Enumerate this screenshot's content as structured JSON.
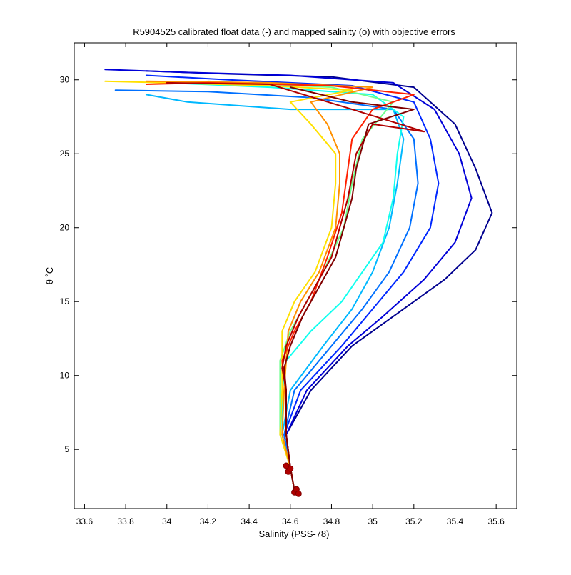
{
  "chart_data": {
    "type": "line",
    "title": "R5904525 calibrated float data (-) and mapped salinity (o) with objective errors",
    "xlabel": "Salinity (PSS-78)",
    "ylabel": "θ ˚C",
    "xlim": [
      33.55,
      35.7
    ],
    "ylim": [
      1,
      32.5
    ],
    "xticks": [
      33.6,
      33.8,
      34,
      34.2,
      34.4,
      34.6,
      34.8,
      35,
      35.2,
      35.4,
      35.6
    ],
    "xtick_labels": [
      "33.6",
      "33.8",
      "34",
      "34.2",
      "34.4",
      "34.6",
      "34.8",
      "35",
      "35.2",
      "35.4",
      "35.6"
    ],
    "yticks": [
      5,
      10,
      15,
      20,
      25,
      30
    ],
    "ytick_labels": [
      "5",
      "10",
      "15",
      "20",
      "25",
      "30"
    ],
    "grid": false,
    "colormap": "jet (profile number: early = dark blue, late = dark red)",
    "series": [
      {
        "color": "#00008f",
        "points": [
          [
            34.62,
            2.2
          ],
          [
            34.6,
            3.8
          ],
          [
            34.58,
            6
          ],
          [
            34.7,
            9
          ],
          [
            34.9,
            12
          ],
          [
            35.1,
            14
          ],
          [
            35.35,
            16.5
          ],
          [
            35.5,
            18.5
          ],
          [
            35.58,
            21
          ],
          [
            35.5,
            24
          ],
          [
            35.4,
            27
          ],
          [
            35.2,
            29.5
          ],
          [
            34.8,
            30.2
          ],
          [
            34.3,
            30.4
          ],
          [
            33.9,
            30.6
          ]
        ]
      },
      {
        "color": "#0000d8",
        "points": [
          [
            34.62,
            2.2
          ],
          [
            34.6,
            3.8
          ],
          [
            34.58,
            6
          ],
          [
            34.68,
            9
          ],
          [
            34.88,
            12
          ],
          [
            35.05,
            14
          ],
          [
            35.25,
            16.5
          ],
          [
            35.4,
            19
          ],
          [
            35.48,
            22
          ],
          [
            35.42,
            25
          ],
          [
            35.3,
            28
          ],
          [
            35.1,
            29.8
          ],
          [
            34.6,
            30.3
          ],
          [
            34.1,
            30.5
          ],
          [
            33.7,
            30.7
          ]
        ]
      },
      {
        "color": "#0028ff",
        "points": [
          [
            34.62,
            2.2
          ],
          [
            34.6,
            3.8
          ],
          [
            34.57,
            6
          ],
          [
            34.65,
            9
          ],
          [
            34.85,
            12
          ],
          [
            35.0,
            14.5
          ],
          [
            35.15,
            17
          ],
          [
            35.28,
            20
          ],
          [
            35.32,
            23
          ],
          [
            35.28,
            26
          ],
          [
            35.2,
            28.5
          ],
          [
            34.9,
            29.6
          ],
          [
            34.3,
            30.0
          ],
          [
            33.9,
            30.3
          ]
        ]
      },
      {
        "color": "#0070ff",
        "points": [
          [
            34.62,
            2.2
          ],
          [
            34.6,
            3.8
          ],
          [
            34.57,
            6
          ],
          [
            34.62,
            9
          ],
          [
            34.8,
            12
          ],
          [
            34.95,
            14.5
          ],
          [
            35.08,
            17
          ],
          [
            35.18,
            20
          ],
          [
            35.22,
            23
          ],
          [
            35.2,
            26
          ],
          [
            35.1,
            28
          ],
          [
            34.7,
            28.8
          ],
          [
            34.2,
            29.2
          ],
          [
            33.75,
            29.3
          ]
        ]
      },
      {
        "color": "#00b8ff",
        "points": [
          [
            34.62,
            2.2
          ],
          [
            34.6,
            3.8
          ],
          [
            34.56,
            6
          ],
          [
            34.6,
            9
          ],
          [
            34.76,
            12
          ],
          [
            34.9,
            14.5
          ],
          [
            35.0,
            17
          ],
          [
            35.08,
            20
          ],
          [
            35.12,
            23
          ],
          [
            35.15,
            26
          ],
          [
            35.1,
            28
          ],
          [
            34.6,
            28.0
          ],
          [
            34.1,
            28.5
          ],
          [
            33.9,
            29.0
          ]
        ]
      },
      {
        "color": "#10ffef",
        "points": [
          [
            34.62,
            2.2
          ],
          [
            34.6,
            3.8
          ],
          [
            34.56,
            6
          ],
          [
            34.56,
            9
          ],
          [
            34.58,
            11
          ],
          [
            34.7,
            13
          ],
          [
            34.85,
            15
          ],
          [
            34.95,
            17
          ],
          [
            35.05,
            19
          ],
          [
            35.1,
            22
          ],
          [
            35.12,
            25
          ],
          [
            35.15,
            27.5
          ],
          [
            35.0,
            29
          ],
          [
            34.5,
            29.5
          ],
          [
            34.0,
            29.8
          ]
        ]
      },
      {
        "color": "#6fff8f",
        "points": [
          [
            34.62,
            2.2
          ],
          [
            34.6,
            3.8
          ],
          [
            34.55,
            6
          ],
          [
            34.55,
            9
          ],
          [
            34.55,
            11
          ],
          [
            34.6,
            13
          ],
          [
            34.68,
            15
          ],
          [
            34.76,
            17
          ],
          [
            34.86,
            20
          ],
          [
            34.9,
            23
          ],
          [
            34.95,
            26
          ],
          [
            35.1,
            28.5
          ],
          [
            34.8,
            29.5
          ],
          [
            34.2,
            29.9
          ]
        ]
      },
      {
        "color": "#ffe000",
        "points": [
          [
            34.62,
            2.2
          ],
          [
            34.6,
            3.8
          ],
          [
            34.55,
            6
          ],
          [
            34.56,
            9
          ],
          [
            34.56,
            11
          ],
          [
            34.56,
            13
          ],
          [
            34.62,
            15
          ],
          [
            34.72,
            17
          ],
          [
            34.8,
            20
          ],
          [
            34.82,
            23
          ],
          [
            34.82,
            25
          ],
          [
            34.7,
            27
          ],
          [
            34.6,
            28.5
          ],
          [
            34.9,
            29.3
          ],
          [
            34.5,
            29.6
          ],
          [
            34.0,
            29.8
          ],
          [
            33.7,
            29.9
          ]
        ]
      },
      {
        "color": "#ff9000",
        "points": [
          [
            34.62,
            2.2
          ],
          [
            34.6,
            3.8
          ],
          [
            34.56,
            6
          ],
          [
            34.57,
            9
          ],
          [
            34.58,
            11
          ],
          [
            34.59,
            13
          ],
          [
            34.65,
            15
          ],
          [
            34.74,
            17
          ],
          [
            34.82,
            20
          ],
          [
            34.84,
            23
          ],
          [
            34.84,
            25
          ],
          [
            34.78,
            27
          ],
          [
            34.7,
            28.5
          ],
          [
            35.0,
            29.5
          ],
          [
            34.5,
            29.8
          ],
          [
            33.9,
            29.9
          ]
        ]
      },
      {
        "color": "#ff2000",
        "points": [
          [
            34.62,
            2.2
          ],
          [
            34.6,
            3.8
          ],
          [
            34.58,
            6
          ],
          [
            34.58,
            9
          ],
          [
            34.56,
            11
          ],
          [
            34.62,
            13
          ],
          [
            34.7,
            15
          ],
          [
            34.78,
            18
          ],
          [
            34.85,
            21
          ],
          [
            34.88,
            24
          ],
          [
            34.9,
            26
          ],
          [
            35.0,
            28
          ],
          [
            35.2,
            29.0
          ],
          [
            34.8,
            29.6
          ],
          [
            34.2,
            29.8
          ],
          [
            33.9,
            29.7
          ]
        ]
      },
      {
        "color": "#b00000",
        "points": [
          [
            34.62,
            2.2
          ],
          [
            34.6,
            3.8
          ],
          [
            34.58,
            6
          ],
          [
            34.58,
            9
          ],
          [
            34.56,
            10.5
          ],
          [
            34.58,
            12
          ],
          [
            34.64,
            14
          ],
          [
            34.72,
            16
          ],
          [
            34.8,
            18
          ],
          [
            34.84,
            20
          ],
          [
            34.88,
            22
          ],
          [
            34.92,
            25
          ],
          [
            35.0,
            27
          ],
          [
            35.25,
            26.5
          ],
          [
            34.9,
            28
          ],
          [
            34.5,
            29.7
          ],
          [
            34.0,
            29.8
          ]
        ]
      },
      {
        "color": "#800000",
        "points": [
          [
            34.62,
            2.2
          ],
          [
            34.6,
            3.8
          ],
          [
            34.58,
            6
          ],
          [
            34.58,
            9
          ],
          [
            34.57,
            10.5
          ],
          [
            34.6,
            12
          ],
          [
            34.66,
            14
          ],
          [
            34.74,
            16
          ],
          [
            34.82,
            18
          ],
          [
            34.86,
            20
          ],
          [
            34.9,
            22
          ],
          [
            34.92,
            24
          ],
          [
            34.98,
            27
          ],
          [
            35.2,
            28
          ],
          [
            34.9,
            28.5
          ],
          [
            34.6,
            29.5
          ]
        ]
      }
    ],
    "mapped_points": [
      [
        34.59,
        3.5
      ],
      [
        34.6,
        3.7
      ],
      [
        34.58,
        3.9
      ],
      [
        34.62,
        2.1
      ],
      [
        34.63,
        2.3
      ],
      [
        34.64,
        2.0
      ]
    ]
  }
}
